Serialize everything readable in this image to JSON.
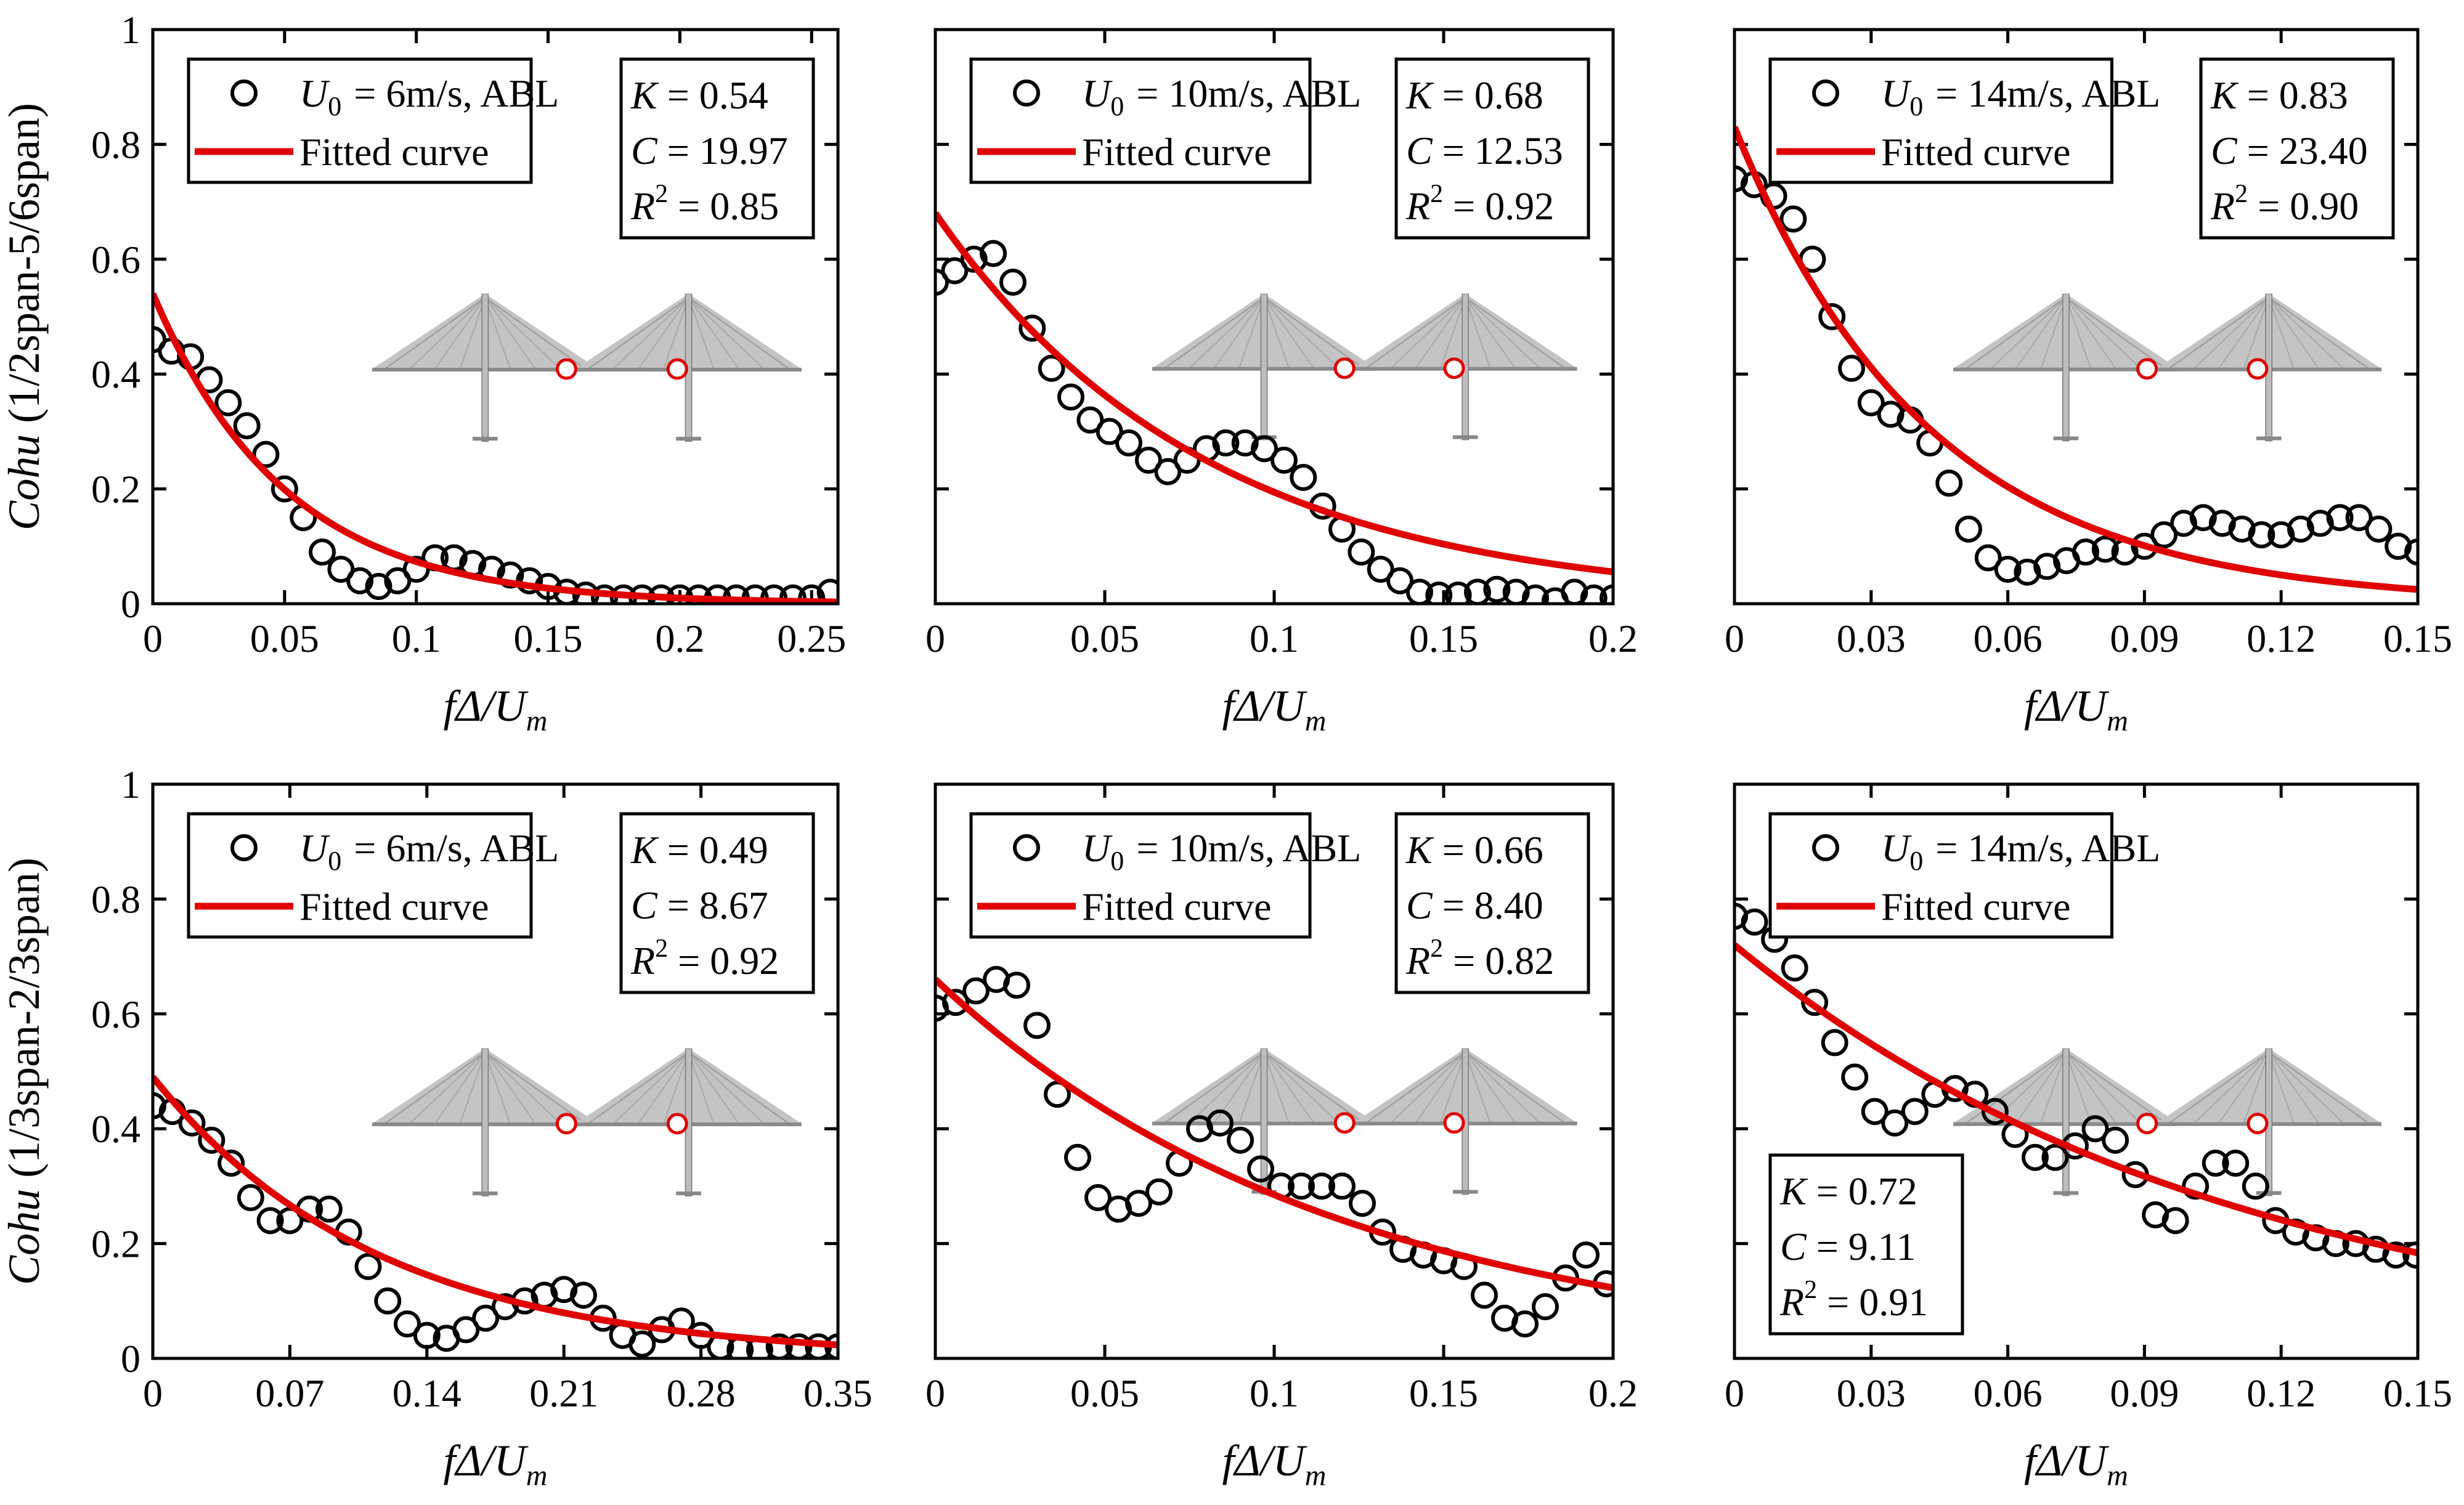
{
  "chart_data": [
    {
      "type": "scatter",
      "row": 0,
      "col": 0,
      "xlabel": "fΔ/Um",
      "ylabel": "Cohu (1/2span-5/6span)",
      "xlim": [
        0,
        0.26
      ],
      "ylim": [
        0,
        1
      ],
      "xticks": [
        "0",
        "0.05",
        "0.1",
        "0.15",
        "0.2",
        "0.25"
      ],
      "xtick_values": [
        0,
        0.05,
        0.1,
        0.15,
        0.2,
        0.25
      ],
      "yticks": [
        "0",
        "0.2",
        "0.4",
        "0.6",
        "0.8",
        "1"
      ],
      "ytick_values": [
        0,
        0.2,
        0.4,
        0.6,
        0.8,
        1
      ],
      "legend": {
        "series_label_prefix": "U",
        "series_label_sub": "0",
        "series_label_rest": "= 6m/s, ABL",
        "fit_label": "Fitted curve"
      },
      "stats": {
        "K": "0.54",
        "C": "19.97",
        "R2": "0.85",
        "position": "top-right"
      },
      "fit": {
        "K": 0.54,
        "C": 19.97
      },
      "x": [
        0,
        0.0071,
        0.0143,
        0.0214,
        0.0286,
        0.0357,
        0.0429,
        0.05,
        0.0571,
        0.0643,
        0.0714,
        0.0786,
        0.0857,
        0.0929,
        0.1,
        0.1071,
        0.1143,
        0.1214,
        0.1286,
        0.1357,
        0.1429,
        0.15,
        0.1571,
        0.1643,
        0.1714,
        0.1786,
        0.1857,
        0.1929,
        0.2,
        0.2071,
        0.2143,
        0.2214,
        0.2286,
        0.2357,
        0.2429,
        0.25,
        0.2571
      ],
      "y": [
        0.46,
        0.44,
        0.43,
        0.39,
        0.35,
        0.31,
        0.26,
        0.2,
        0.15,
        0.09,
        0.06,
        0.04,
        0.03,
        0.04,
        0.06,
        0.08,
        0.08,
        0.07,
        0.06,
        0.05,
        0.04,
        0.03,
        0.02,
        0.015,
        0.01,
        0.01,
        0.01,
        0.01,
        0.01,
        0.01,
        0.01,
        0.01,
        0.01,
        0.01,
        0.01,
        0.01,
        0.02
      ],
      "icon": "cable-stayed-bridge-icon"
    },
    {
      "type": "scatter",
      "row": 0,
      "col": 1,
      "xlabel": "fΔ/Um",
      "ylabel": "",
      "xlim": [
        0,
        0.2
      ],
      "ylim": [
        0,
        1
      ],
      "xticks": [
        "0",
        "0.05",
        "0.1",
        "0.15",
        "0.2"
      ],
      "xtick_values": [
        0,
        0.05,
        0.1,
        0.15,
        0.2
      ],
      "yticks": [],
      "ytick_values": [
        0,
        0.2,
        0.4,
        0.6,
        0.8,
        1
      ],
      "legend": {
        "series_label_prefix": "U",
        "series_label_sub": "0",
        "series_label_rest": "= 10m/s, ABL",
        "fit_label": "Fitted curve"
      },
      "stats": {
        "K": "0.68",
        "C": "12.53",
        "R2": "0.92",
        "position": "top-right"
      },
      "fit": {
        "K": 0.68,
        "C": 12.53
      },
      "x": [
        0,
        0.0057,
        0.0114,
        0.0171,
        0.0229,
        0.0286,
        0.0343,
        0.04,
        0.0457,
        0.0514,
        0.0571,
        0.0629,
        0.0686,
        0.0743,
        0.08,
        0.0857,
        0.0914,
        0.0971,
        0.1029,
        0.1086,
        0.1143,
        0.12,
        0.1257,
        0.1314,
        0.1371,
        0.1429,
        0.1486,
        0.1543,
        0.16,
        0.1657,
        0.1714,
        0.1771,
        0.1829,
        0.1886,
        0.1943,
        0.2
      ],
      "y": [
        0.56,
        0.58,
        0.6,
        0.61,
        0.56,
        0.48,
        0.41,
        0.36,
        0.32,
        0.3,
        0.28,
        0.25,
        0.23,
        0.25,
        0.27,
        0.28,
        0.28,
        0.27,
        0.25,
        0.22,
        0.17,
        0.13,
        0.09,
        0.06,
        0.04,
        0.02,
        0.015,
        0.015,
        0.02,
        0.025,
        0.02,
        0.01,
        0.005,
        0.02,
        0.01,
        0.01
      ],
      "icon": "cable-stayed-bridge-icon"
    },
    {
      "type": "scatter",
      "row": 0,
      "col": 2,
      "xlabel": "fΔ/Um",
      "ylabel": "",
      "xlim": [
        0,
        0.15
      ],
      "ylim": [
        0,
        1
      ],
      "xticks": [
        "0",
        "0.03",
        "0.06",
        "0.09",
        "0.12",
        "0.15"
      ],
      "xtick_values": [
        0,
        0.03,
        0.06,
        0.09,
        0.12,
        0.15
      ],
      "yticks": [],
      "ytick_values": [
        0,
        0.2,
        0.4,
        0.6,
        0.8,
        1
      ],
      "legend": {
        "series_label_prefix": "U",
        "series_label_sub": "0",
        "series_label_rest": "= 14m/s, ABL",
        "fit_label": "Fitted curve"
      },
      "stats": {
        "K": "0.83",
        "C": "23.40",
        "R2": "0.90",
        "position": "top-right"
      },
      "fit": {
        "K": 0.83,
        "C": 23.4
      },
      "x": [
        0,
        0.0043,
        0.0086,
        0.0129,
        0.0171,
        0.0214,
        0.0257,
        0.03,
        0.0343,
        0.0386,
        0.0429,
        0.0471,
        0.0514,
        0.0557,
        0.06,
        0.0643,
        0.0686,
        0.0729,
        0.0771,
        0.0814,
        0.0857,
        0.09,
        0.0943,
        0.0986,
        0.1029,
        0.1071,
        0.1114,
        0.1157,
        0.12,
        0.1243,
        0.1286,
        0.1329,
        0.1371,
        0.1414,
        0.1457,
        0.15
      ],
      "y": [
        0.74,
        0.73,
        0.71,
        0.67,
        0.6,
        0.5,
        0.41,
        0.35,
        0.33,
        0.32,
        0.28,
        0.21,
        0.13,
        0.08,
        0.06,
        0.055,
        0.065,
        0.075,
        0.09,
        0.095,
        0.09,
        0.1,
        0.12,
        0.14,
        0.15,
        0.14,
        0.13,
        0.12,
        0.12,
        0.13,
        0.14,
        0.15,
        0.15,
        0.13,
        0.1,
        0.09
      ],
      "icon": "cable-stayed-bridge-icon"
    },
    {
      "type": "scatter",
      "row": 1,
      "col": 0,
      "xlabel": "fΔ/Um",
      "ylabel": "Cohu (1/3span-2/3span)",
      "xlim": [
        0,
        0.35
      ],
      "ylim": [
        0,
        1
      ],
      "xticks": [
        "0",
        "0.07",
        "0.14",
        "0.21",
        "0.28",
        "0.35"
      ],
      "xtick_values": [
        0,
        0.07,
        0.14,
        0.21,
        0.28,
        0.35
      ],
      "yticks": [
        "0",
        "0.2",
        "0.4",
        "0.6",
        "0.8",
        "1"
      ],
      "ytick_values": [
        0,
        0.2,
        0.4,
        0.6,
        0.8,
        1
      ],
      "legend": {
        "series_label_prefix": "U",
        "series_label_sub": "0",
        "series_label_rest": "= 6m/s, ABL",
        "fit_label": "Fitted curve"
      },
      "stats": {
        "K": "0.49",
        "C": "8.67",
        "R2": "0.92",
        "position": "top-right"
      },
      "fit": {
        "K": 0.49,
        "C": 8.67
      },
      "x": [
        0,
        0.01,
        0.02,
        0.03,
        0.04,
        0.05,
        0.06,
        0.07,
        0.08,
        0.09,
        0.1,
        0.11,
        0.12,
        0.13,
        0.14,
        0.15,
        0.16,
        0.17,
        0.18,
        0.19,
        0.2,
        0.21,
        0.22,
        0.23,
        0.24,
        0.25,
        0.26,
        0.27,
        0.28,
        0.29,
        0.3,
        0.31,
        0.32,
        0.33,
        0.34,
        0.35
      ],
      "y": [
        0.44,
        0.43,
        0.41,
        0.38,
        0.34,
        0.28,
        0.24,
        0.24,
        0.26,
        0.26,
        0.22,
        0.16,
        0.1,
        0.06,
        0.04,
        0.035,
        0.05,
        0.07,
        0.09,
        0.1,
        0.11,
        0.12,
        0.11,
        0.07,
        0.04,
        0.025,
        0.05,
        0.065,
        0.04,
        0.02,
        0.015,
        0.015,
        0.02,
        0.02,
        0.02,
        0.02
      ],
      "icon": "cable-stayed-bridge-icon"
    },
    {
      "type": "scatter",
      "row": 1,
      "col": 1,
      "xlabel": "fΔ/Um",
      "ylabel": "",
      "xlim": [
        0,
        0.2
      ],
      "ylim": [
        0,
        1
      ],
      "xticks": [
        "0",
        "0.05",
        "0.1",
        "0.15",
        "0.2"
      ],
      "xtick_values": [
        0,
        0.05,
        0.1,
        0.15,
        0.2
      ],
      "yticks": [],
      "ytick_values": [
        0,
        0.2,
        0.4,
        0.6,
        0.8,
        1
      ],
      "legend": {
        "series_label_prefix": "U",
        "series_label_sub": "0",
        "series_label_rest": "= 10m/s, ABL",
        "fit_label": "Fitted curve"
      },
      "stats": {
        "K": "0.66",
        "C": "8.40",
        "R2": "0.82",
        "position": "top-right"
      },
      "fit": {
        "K": 0.66,
        "C": 8.4
      },
      "x": [
        0,
        0.006,
        0.012,
        0.018,
        0.024,
        0.03,
        0.036,
        0.042,
        0.048,
        0.054,
        0.06,
        0.066,
        0.072,
        0.078,
        0.084,
        0.09,
        0.096,
        0.102,
        0.108,
        0.114,
        0.12,
        0.126,
        0.132,
        0.138,
        0.144,
        0.15,
        0.156,
        0.162,
        0.168,
        0.174,
        0.18,
        0.186,
        0.192,
        0.198
      ],
      "y": [
        0.61,
        0.62,
        0.64,
        0.66,
        0.65,
        0.58,
        0.46,
        0.35,
        0.28,
        0.26,
        0.27,
        0.29,
        0.34,
        0.4,
        0.41,
        0.38,
        0.33,
        0.3,
        0.3,
        0.3,
        0.3,
        0.27,
        0.22,
        0.19,
        0.18,
        0.17,
        0.16,
        0.11,
        0.07,
        0.06,
        0.09,
        0.14,
        0.18,
        0.13
      ],
      "icon": "cable-stayed-bridge-icon"
    },
    {
      "type": "scatter",
      "row": 1,
      "col": 2,
      "xlabel": "fΔ/Um",
      "ylabel": "",
      "xlim": [
        0,
        0.15
      ],
      "ylim": [
        0,
        1
      ],
      "xticks": [
        "0",
        "0.03",
        "0.06",
        "0.09",
        "0.12",
        "0.15"
      ],
      "xtick_values": [
        0,
        0.03,
        0.06,
        0.09,
        0.12,
        0.15
      ],
      "yticks": [],
      "ytick_values": [
        0,
        0.2,
        0.4,
        0.6,
        0.8,
        1
      ],
      "legend": {
        "series_label_prefix": "U",
        "series_label_sub": "0",
        "series_label_rest": "= 14m/s, ABL",
        "fit_label": "Fitted curve"
      },
      "stats": {
        "K": "0.72",
        "C": "9.11",
        "R2": "0.91",
        "position": "bottom-left"
      },
      "fit": {
        "K": 0.72,
        "C": 9.11
      },
      "x": [
        0,
        0.0044,
        0.0088,
        0.0132,
        0.0176,
        0.022,
        0.0264,
        0.0308,
        0.0352,
        0.0396,
        0.044,
        0.0484,
        0.0528,
        0.0572,
        0.0616,
        0.066,
        0.0704,
        0.0748,
        0.0792,
        0.0836,
        0.088,
        0.0924,
        0.0968,
        0.1012,
        0.1056,
        0.11,
        0.1144,
        0.1188,
        0.1232,
        0.1276,
        0.132,
        0.1364,
        0.1408,
        0.1452,
        0.1496
      ],
      "y": [
        0.77,
        0.76,
        0.73,
        0.68,
        0.62,
        0.55,
        0.49,
        0.43,
        0.41,
        0.43,
        0.46,
        0.47,
        0.46,
        0.43,
        0.39,
        0.35,
        0.35,
        0.37,
        0.4,
        0.38,
        0.32,
        0.25,
        0.24,
        0.3,
        0.34,
        0.34,
        0.3,
        0.24,
        0.22,
        0.21,
        0.2,
        0.2,
        0.19,
        0.18,
        0.18
      ],
      "icon": "cable-stayed-bridge-icon"
    }
  ]
}
